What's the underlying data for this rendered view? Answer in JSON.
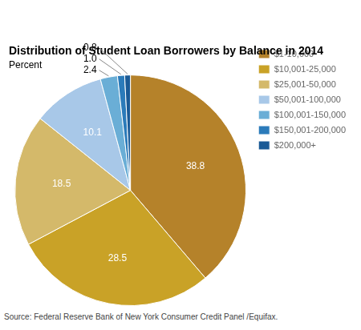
{
  "chart_data": {
    "type": "pie",
    "title": "Distribution of Student Loan Borrowers by Balance in 2014",
    "subtitle": "Percent",
    "annotations": [
      "Source: Federal Reserve Bank of New York Consumer Credit Panel /Equifax."
    ],
    "categories": [
      "$1-10,000",
      "$10,001-25,000",
      "$25,001-50,000",
      "$50,001-100,000",
      "$100,001-150,000",
      "$150,001-200,000",
      "$200,000+"
    ],
    "values": [
      38.8,
      28.5,
      18.5,
      10.1,
      2.4,
      1.0,
      0.8
    ],
    "value_labels": [
      "38.8",
      "28.5",
      "18.5",
      "10.1",
      "2.4",
      "1.0",
      "0.8"
    ],
    "colors": [
      "#b5822a",
      "#c9a227",
      "#d4b96a",
      "#a8c8e8",
      "#6aaed6",
      "#2b7bba",
      "#1a5a96"
    ],
    "data_labels": true,
    "legend": "upper right"
  }
}
